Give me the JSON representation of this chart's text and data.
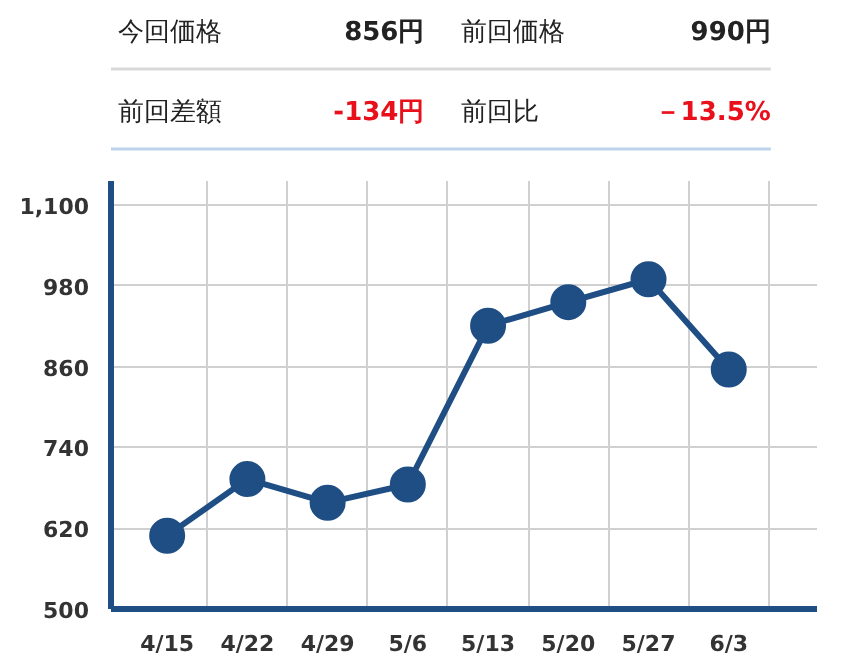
{
  "chart_data": {
    "type": "line",
    "annotations": [
      "今回価格",
      "856円",
      "前回価格",
      "990円",
      "前回差額",
      "-134円",
      "前回比",
      "－13.5%"
    ],
    "categories": [
      "4/15",
      "4/22",
      "4/29",
      "5/6",
      "5/13",
      "5/20",
      "5/27",
      "6/3"
    ],
    "series": [
      {
        "color": "#1f4e84",
        "values": [
          609,
          693,
          658,
          685,
          921,
          956,
          990,
          856
        ]
      }
    ],
    "ylim": [
      500,
      1100
    ],
    "yticks": [
      500,
      620,
      740,
      860,
      980,
      {
        "value": 1100,
        "label": "1,100"
      }
    ],
    "grid": true,
    "marker": "circle",
    "line_style": "solid"
  }
}
